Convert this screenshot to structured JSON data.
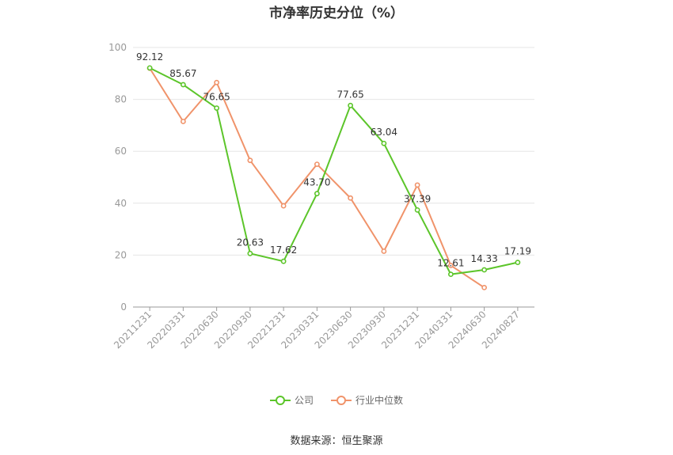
{
  "chart_data": {
    "type": "line",
    "title": "市净率历史分位（%）",
    "categories": [
      "20211231",
      "20220331",
      "20220630",
      "20220930",
      "20221231",
      "20230331",
      "20230630",
      "20230930",
      "20231231",
      "20240331",
      "20240630",
      "20240827"
    ],
    "ylim": [
      0,
      100
    ],
    "yticks": [
      0,
      20,
      40,
      60,
      80,
      100
    ],
    "grid": true,
    "legend_position": "bottom",
    "series": [
      {
        "name": "公司",
        "color": "#5cc52a",
        "values": [
          92.12,
          85.67,
          76.65,
          20.63,
          17.62,
          43.7,
          77.65,
          63.04,
          37.39,
          12.61,
          14.33,
          17.19
        ],
        "labels": [
          "92.12",
          "85.67",
          "76.65",
          "20.63",
          "17.62",
          "43.70",
          "77.65",
          "63.04",
          "37.39",
          "12.61",
          "14.33",
          "17.19"
        ]
      },
      {
        "name": "行业中位数",
        "color": "#f0936a",
        "values": [
          92.0,
          71.5,
          86.5,
          56.5,
          39.0,
          55.0,
          42.0,
          21.5,
          47.0,
          16.0,
          7.5,
          null
        ]
      }
    ]
  },
  "source": "数据来源：恒生聚源"
}
